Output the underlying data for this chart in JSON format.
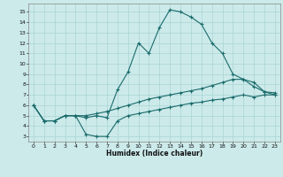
{
  "xlabel": "Humidex (Indice chaleur)",
  "bg_color": "#cceaea",
  "line_color": "#1a6b6b",
  "grid_color": "#aad4d4",
  "xlim": [
    -0.5,
    23.5
  ],
  "ylim": [
    2.5,
    15.8
  ],
  "xticks": [
    0,
    1,
    2,
    3,
    4,
    5,
    6,
    7,
    8,
    9,
    10,
    11,
    12,
    13,
    14,
    15,
    16,
    17,
    18,
    19,
    20,
    21,
    22,
    23
  ],
  "yticks": [
    3,
    4,
    5,
    6,
    7,
    8,
    9,
    10,
    11,
    12,
    13,
    14,
    15
  ],
  "curve1_x": [
    0,
    1,
    2,
    3,
    4,
    5,
    6,
    7,
    8,
    9,
    10,
    11,
    12,
    13,
    14,
    15,
    16,
    17,
    18,
    19,
    20,
    21,
    22,
    23
  ],
  "curve1_y": [
    6.0,
    4.5,
    4.5,
    5.0,
    5.0,
    4.8,
    5.0,
    4.8,
    7.5,
    9.2,
    12.0,
    11.0,
    13.5,
    15.2,
    15.0,
    14.5,
    13.8,
    12.0,
    11.0,
    9.0,
    8.5,
    7.8,
    7.3,
    7.0
  ],
  "curve2_x": [
    0,
    1,
    2,
    3,
    4,
    5,
    6,
    7,
    8,
    9,
    10,
    11,
    12,
    13,
    14,
    15,
    16,
    17,
    18,
    19,
    20,
    21,
    22,
    23
  ],
  "curve2_y": [
    6.0,
    4.5,
    4.5,
    5.0,
    5.0,
    5.0,
    5.2,
    5.4,
    5.7,
    6.0,
    6.3,
    6.6,
    6.8,
    7.0,
    7.2,
    7.4,
    7.6,
    7.9,
    8.2,
    8.5,
    8.5,
    8.2,
    7.3,
    7.2
  ],
  "curve3_x": [
    0,
    1,
    2,
    3,
    4,
    5,
    6,
    7,
    8,
    9,
    10,
    11,
    12,
    13,
    14,
    15,
    16,
    17,
    18,
    19,
    20,
    21,
    22,
    23
  ],
  "curve3_y": [
    6.0,
    4.5,
    4.5,
    5.0,
    5.0,
    3.2,
    3.0,
    3.0,
    4.5,
    5.0,
    5.2,
    5.4,
    5.6,
    5.8,
    6.0,
    6.2,
    6.3,
    6.5,
    6.6,
    6.8,
    7.0,
    6.8,
    7.0,
    7.0
  ]
}
